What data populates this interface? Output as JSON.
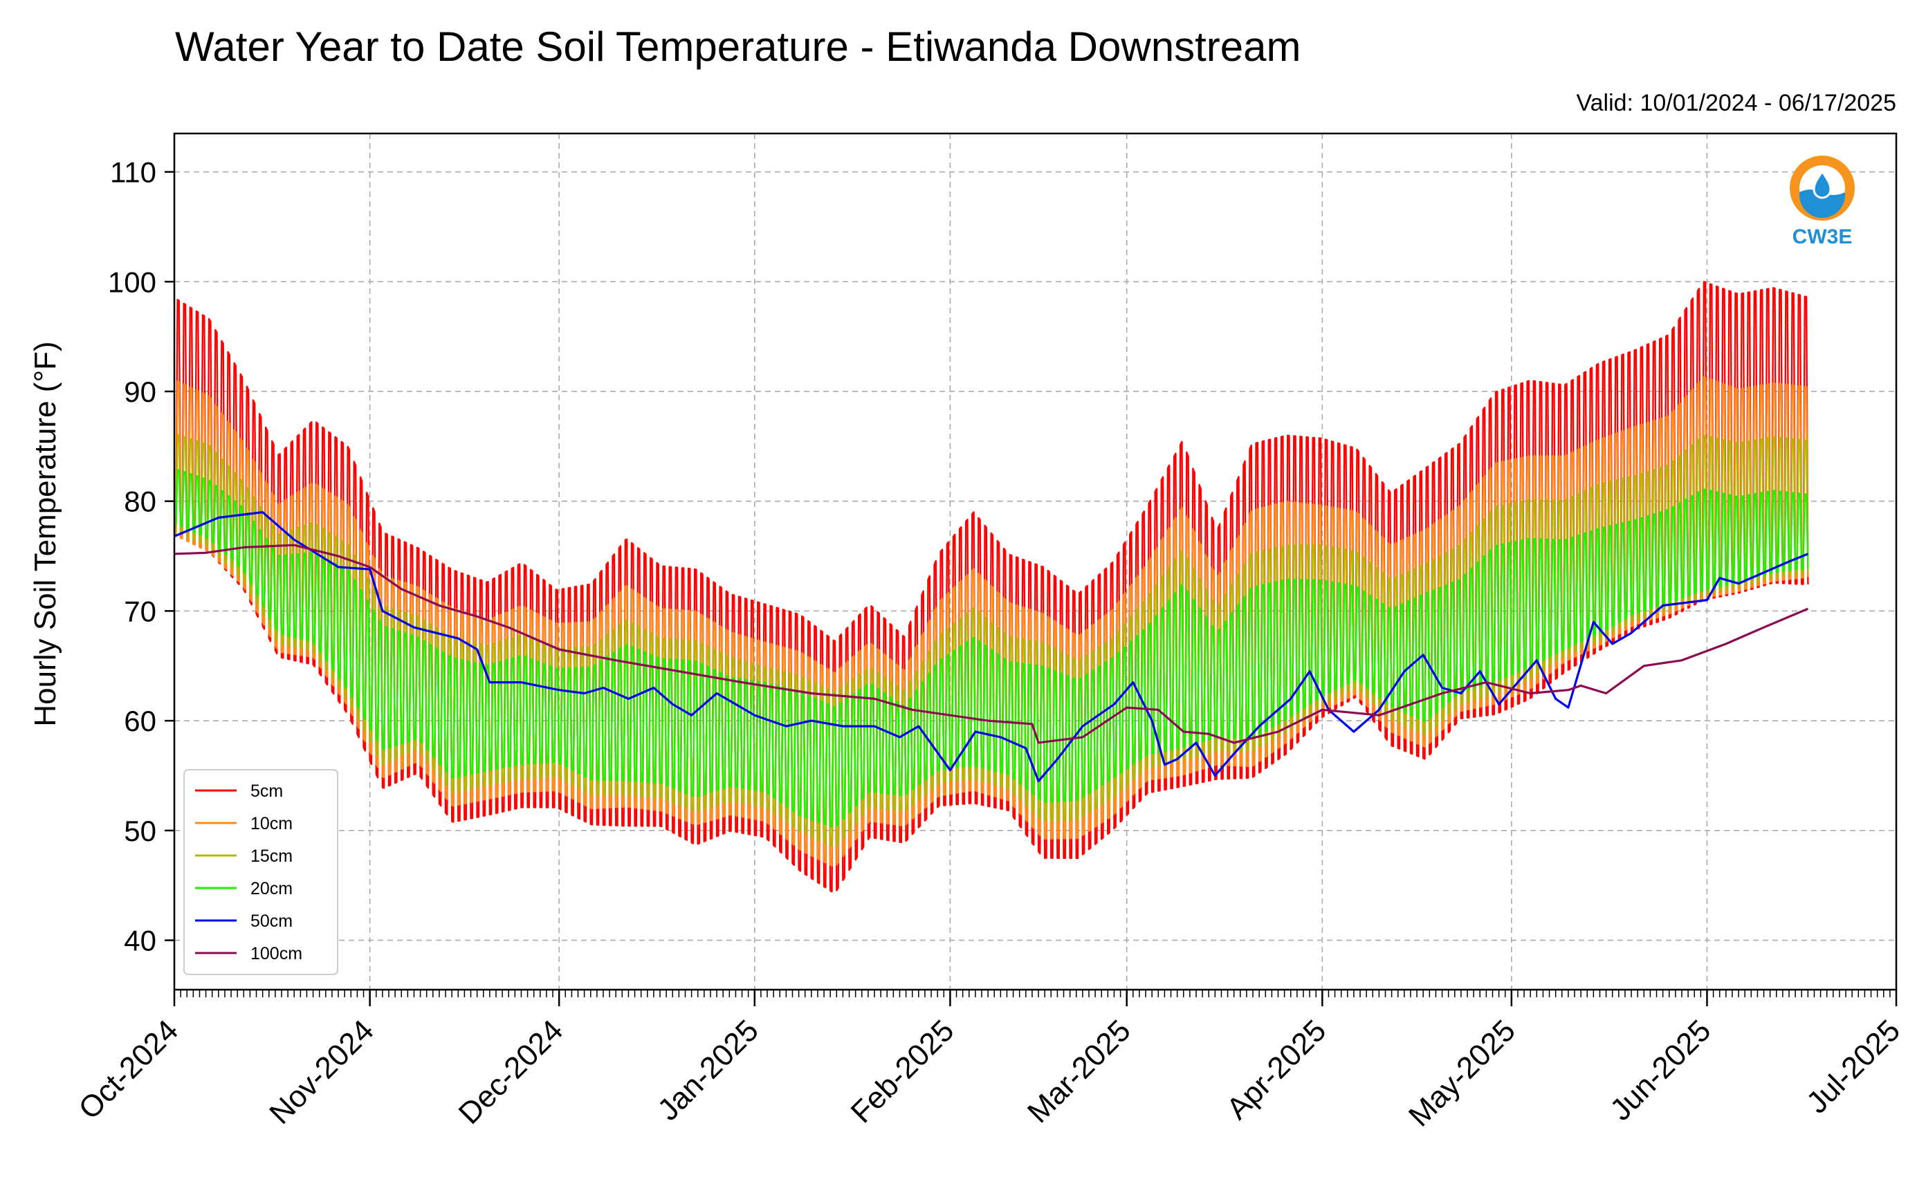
{
  "chart_data": {
    "type": "line",
    "title": "Water Year to Date Soil Temperature - Etiwanda Downstream",
    "subtitle": "Valid: 10/01/2024 - 06/17/2025",
    "ylabel": "Hourly Soil Temperature (°F)",
    "xlabel": "",
    "ylim": [
      35.5,
      113.5
    ],
    "yticks": [
      "40",
      "50",
      "60",
      "70",
      "80",
      "90",
      "100",
      "110"
    ],
    "ytick_values": [
      40,
      50,
      60,
      70,
      80,
      90,
      100,
      110
    ],
    "xticks": [
      "Oct-2024",
      "Nov-2024",
      "Dec-2024",
      "Jan-2025",
      "Feb-2025",
      "Mar-2025",
      "Apr-2025",
      "May-2025",
      "Jun-2025",
      "Jul-2025"
    ],
    "xtick_dates": [
      "2024-10-01",
      "2024-11-01",
      "2024-12-01",
      "2025-01-01",
      "2025-02-01",
      "2025-03-01",
      "2025-04-01",
      "2025-05-01",
      "2025-06-01",
      "2025-07-01"
    ],
    "xlim": [
      "2024-10-01",
      "2025-07-01"
    ],
    "data_end": "2025-06-17",
    "grid": true,
    "legend_position": "lower-left",
    "logo_text": "CW3E",
    "series": [
      {
        "name": "5cm",
        "color": "#ff0000",
        "min": [
          72.5,
          71.0,
          68.0,
          62.0,
          60.5,
          55.5,
          49.0,
          51.0,
          46.0,
          47.0,
          47.5,
          48.0,
          46.0,
          45.0,
          45.5,
          43.5,
          45.5,
          45.0,
          41.5,
          39.5,
          45.0,
          45.0,
          47.5,
          47.0,
          47.0,
          42.0,
          42.5,
          45.0,
          48.0,
          47.5,
          50.0,
          48.5,
          51.0,
          55.0,
          57.5,
          53.0,
          51.0,
          55.0,
          54.5,
          56.0,
          59.0,
          61.0,
          63.0,
          64.0,
          65.0,
          66.0,
          67.0,
          67.0
        ],
        "max": [
          103.0,
          101.0,
          95.0,
          88.0,
          92.0,
          90.0,
          82.0,
          80.0,
          78.5,
          77.0,
          79.0,
          76.0,
          77.0,
          82.0,
          79.0,
          79.0,
          76.0,
          75.0,
          74.5,
          72.0,
          75.0,
          71.5,
          80.0,
          84.5,
          80.0,
          79.5,
          76.5,
          79.5,
          85.0,
          92.0,
          82.0,
          91.5,
          92.0,
          91.0,
          89.5,
          85.5,
          88.5,
          90.5,
          96.0,
          97.0,
          96.0,
          98.0,
          99.0,
          100.5,
          106.0,
          104.5,
          105.0,
          104.0
        ]
      },
      {
        "name": "10cm",
        "color": "#ff8c1a",
        "min": [
          74.0,
          72.5,
          69.5,
          63.5,
          62.5,
          57.5,
          51.0,
          53.0,
          48.5,
          49.5,
          50.0,
          50.5,
          48.5,
          48.0,
          48.0,
          46.5,
          48.0,
          47.5,
          44.5,
          43.0,
          47.5,
          47.5,
          49.5,
          49.5,
          49.0,
          45.0,
          45.5,
          47.5,
          50.5,
          50.0,
          52.5,
          51.0,
          53.5,
          57.0,
          59.0,
          55.5,
          53.5,
          57.0,
          57.0,
          58.5,
          61.5,
          63.0,
          65.0,
          66.0,
          67.0,
          68.0,
          69.0,
          69.5
        ],
        "max": [
          94.0,
          92.5,
          88.0,
          82.5,
          85.0,
          83.5,
          77.0,
          75.5,
          74.0,
          72.5,
          74.0,
          72.0,
          72.5,
          76.5,
          74.0,
          74.0,
          71.5,
          70.5,
          70.0,
          68.0,
          70.5,
          67.5,
          74.5,
          78.0,
          74.5,
          74.0,
          71.5,
          74.0,
          78.5,
          84.5,
          76.5,
          84.0,
          84.5,
          83.5,
          82.5,
          79.5,
          81.5,
          83.5,
          88.0,
          88.5,
          88.0,
          89.5,
          90.5,
          91.5,
          95.5,
          94.0,
          94.5,
          94.0
        ]
      },
      {
        "name": "15cm",
        "color": "#b5b500",
        "min": [
          75.5,
          74.0,
          71.0,
          65.0,
          64.0,
          59.0,
          53.0,
          55.0,
          50.5,
          51.5,
          52.0,
          52.5,
          50.5,
          50.0,
          50.0,
          48.5,
          50.0,
          49.5,
          47.0,
          45.5,
          49.5,
          49.5,
          51.5,
          51.5,
          51.0,
          47.5,
          48.0,
          50.0,
          52.5,
          52.5,
          54.5,
          53.5,
          55.5,
          58.5,
          60.5,
          57.5,
          55.5,
          58.5,
          59.0,
          60.5,
          63.0,
          64.5,
          66.5,
          67.5,
          68.5,
          69.5,
          70.5,
          71.0
        ],
        "max": [
          88.0,
          87.0,
          83.5,
          79.0,
          80.5,
          79.0,
          73.5,
          72.0,
          70.5,
          69.5,
          70.5,
          69.0,
          69.5,
          72.5,
          70.5,
          70.5,
          68.5,
          67.5,
          67.0,
          65.5,
          67.5,
          65.0,
          70.5,
          73.5,
          70.5,
          70.5,
          68.5,
          70.5,
          74.5,
          79.5,
          73.0,
          79.0,
          79.5,
          79.0,
          78.0,
          75.5,
          77.5,
          79.0,
          83.0,
          83.5,
          83.0,
          84.5,
          85.0,
          86.0,
          89.0,
          88.0,
          88.5,
          88.0
        ]
      },
      {
        "name": "20cm",
        "color": "#22ee00",
        "min": [
          77.0,
          75.5,
          72.5,
          66.5,
          65.5,
          60.5,
          55.0,
          56.5,
          52.5,
          53.5,
          54.0,
          54.5,
          52.5,
          52.0,
          52.0,
          50.5,
          52.0,
          51.5,
          49.0,
          48.0,
          51.5,
          51.5,
          53.5,
          53.5,
          53.0,
          50.0,
          50.5,
          52.5,
          54.5,
          54.5,
          56.5,
          55.5,
          57.5,
          60.0,
          62.0,
          59.5,
          57.5,
          60.5,
          61.0,
          62.5,
          64.5,
          66.0,
          68.0,
          69.0,
          70.0,
          71.0,
          72.0,
          72.5
        ],
        "max": [
          84.0,
          83.0,
          80.5,
          76.5,
          77.0,
          76.0,
          71.0,
          69.5,
          68.0,
          67.0,
          68.0,
          66.5,
          67.0,
          69.5,
          68.0,
          68.0,
          66.0,
          65.5,
          65.0,
          63.5,
          65.5,
          63.0,
          67.5,
          70.0,
          67.5,
          67.5,
          66.0,
          68.0,
          71.0,
          75.5,
          70.0,
          75.0,
          75.5,
          75.0,
          74.0,
          72.0,
          74.0,
          75.0,
          78.5,
          79.0,
          78.5,
          79.5,
          80.0,
          81.0,
          83.0,
          82.0,
          82.5,
          82.0
        ]
      },
      {
        "name": "50cm",
        "color": "#0000ee",
        "x": [
          "2024-10-01",
          "2024-10-08",
          "2024-10-15",
          "2024-10-20",
          "2024-10-27",
          "2024-11-01",
          "2024-11-03",
          "2024-11-08",
          "2024-11-15",
          "2024-11-18",
          "2024-11-20",
          "2024-11-25",
          "2024-12-01",
          "2024-12-05",
          "2024-12-08",
          "2024-12-12",
          "2024-12-16",
          "2024-12-19",
          "2024-12-22",
          "2024-12-26",
          "2024-12-29",
          "2025-01-01",
          "2025-01-06",
          "2025-01-10",
          "2025-01-15",
          "2025-01-20",
          "2025-01-24",
          "2025-01-27",
          "2025-02-01",
          "2025-02-05",
          "2025-02-09",
          "2025-02-13",
          "2025-02-15",
          "2025-02-18",
          "2025-02-22",
          "2025-02-27",
          "2025-03-02",
          "2025-03-05",
          "2025-03-07",
          "2025-03-09",
          "2025-03-12",
          "2025-03-15",
          "2025-03-18",
          "2025-03-22",
          "2025-03-27",
          "2025-03-30",
          "2025-04-02",
          "2025-04-06",
          "2025-04-10",
          "2025-04-14",
          "2025-04-17",
          "2025-04-20",
          "2025-04-23",
          "2025-04-26",
          "2025-04-29",
          "2025-05-02",
          "2025-05-05",
          "2025-05-08",
          "2025-05-10",
          "2025-05-14",
          "2025-05-17",
          "2025-05-20",
          "2025-05-25",
          "2025-06-01",
          "2025-06-03",
          "2025-06-06",
          "2025-06-10",
          "2025-06-14",
          "2025-06-17"
        ],
        "y": [
          76.8,
          78.5,
          79.0,
          76.5,
          74.0,
          73.8,
          70.0,
          68.5,
          67.5,
          66.5,
          63.5,
          63.5,
          62.8,
          62.5,
          63.0,
          62.0,
          63.0,
          61.5,
          60.5,
          62.5,
          61.5,
          60.5,
          59.5,
          60.0,
          59.5,
          59.5,
          58.5,
          59.5,
          55.5,
          59.0,
          58.5,
          57.5,
          54.5,
          56.5,
          59.5,
          61.5,
          63.5,
          60.0,
          56.0,
          56.5,
          58.0,
          55.0,
          57.0,
          59.5,
          62.0,
          64.5,
          61.0,
          59.0,
          61.0,
          64.5,
          66.0,
          63.0,
          62.5,
          64.5,
          61.5,
          63.5,
          65.5,
          62.0,
          61.2,
          69.0,
          67.0,
          68.0,
          70.5,
          71.0,
          73.0,
          72.5,
          73.5,
          74.5,
          75.2
        ]
      },
      {
        "name": "100cm",
        "color": "#8b0a50",
        "x": [
          "2024-10-01",
          "2024-10-06",
          "2024-10-12",
          "2024-10-20",
          "2024-10-27",
          "2024-11-01",
          "2024-11-06",
          "2024-11-12",
          "2024-11-18",
          "2024-11-23",
          "2024-12-01",
          "2024-12-10",
          "2024-12-20",
          "2024-12-30",
          "2025-01-10",
          "2025-01-20",
          "2025-01-26",
          "2025-02-01",
          "2025-02-07",
          "2025-02-14",
          "2025-02-15",
          "2025-02-22",
          "2025-03-01",
          "2025-03-06",
          "2025-03-10",
          "2025-03-14",
          "2025-03-18",
          "2025-03-25",
          "2025-04-01",
          "2025-04-10",
          "2025-04-20",
          "2025-04-27",
          "2025-05-04",
          "2025-05-10",
          "2025-05-12",
          "2025-05-16",
          "2025-05-22",
          "2025-05-28",
          "2025-06-04",
          "2025-06-10",
          "2025-06-17"
        ],
        "y": [
          75.2,
          75.3,
          75.8,
          76.0,
          75.0,
          74.0,
          72.0,
          70.5,
          69.5,
          68.5,
          66.5,
          65.5,
          64.5,
          63.5,
          62.5,
          62.0,
          61.0,
          60.5,
          60.0,
          59.7,
          58.0,
          58.5,
          61.2,
          61.0,
          59.0,
          58.8,
          58.0,
          59.0,
          61.0,
          60.5,
          62.5,
          63.5,
          62.5,
          62.8,
          63.2,
          62.5,
          65.0,
          65.5,
          67.0,
          68.5,
          70.2
        ]
      }
    ]
  }
}
